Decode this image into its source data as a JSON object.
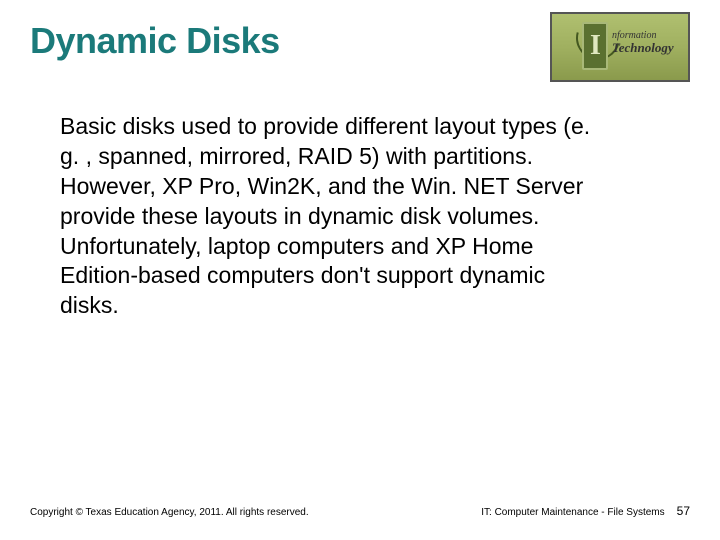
{
  "title": "Dynamic Disks",
  "logo": {
    "line1": "nformation",
    "line2": "Technology",
    "border_color": "#555555",
    "bg_gradient_top": "#b0c070",
    "bg_gradient_bottom": "#8a9a4c"
  },
  "body": "Basic disks used to provide different layout types (e. g. , spanned, mirrored, RAID 5) with partitions. However, XP Pro, Win2K, and the Win. NET Server provide these layouts in dynamic disk volumes. Unfortunately, laptop computers and XP Home Edition-based computers don't support dynamic disks.",
  "footer": {
    "copyright": "Copyright © Texas Education Agency, 2011. All rights reserved.",
    "course": "IT: Computer Maintenance - File Systems",
    "page": "57"
  },
  "colors": {
    "title_color": "#1b7a7a",
    "body_color": "#000000",
    "background": "#ffffff"
  },
  "typography": {
    "title_fontsize": 36,
    "body_fontsize": 23,
    "footer_fontsize": 10
  }
}
